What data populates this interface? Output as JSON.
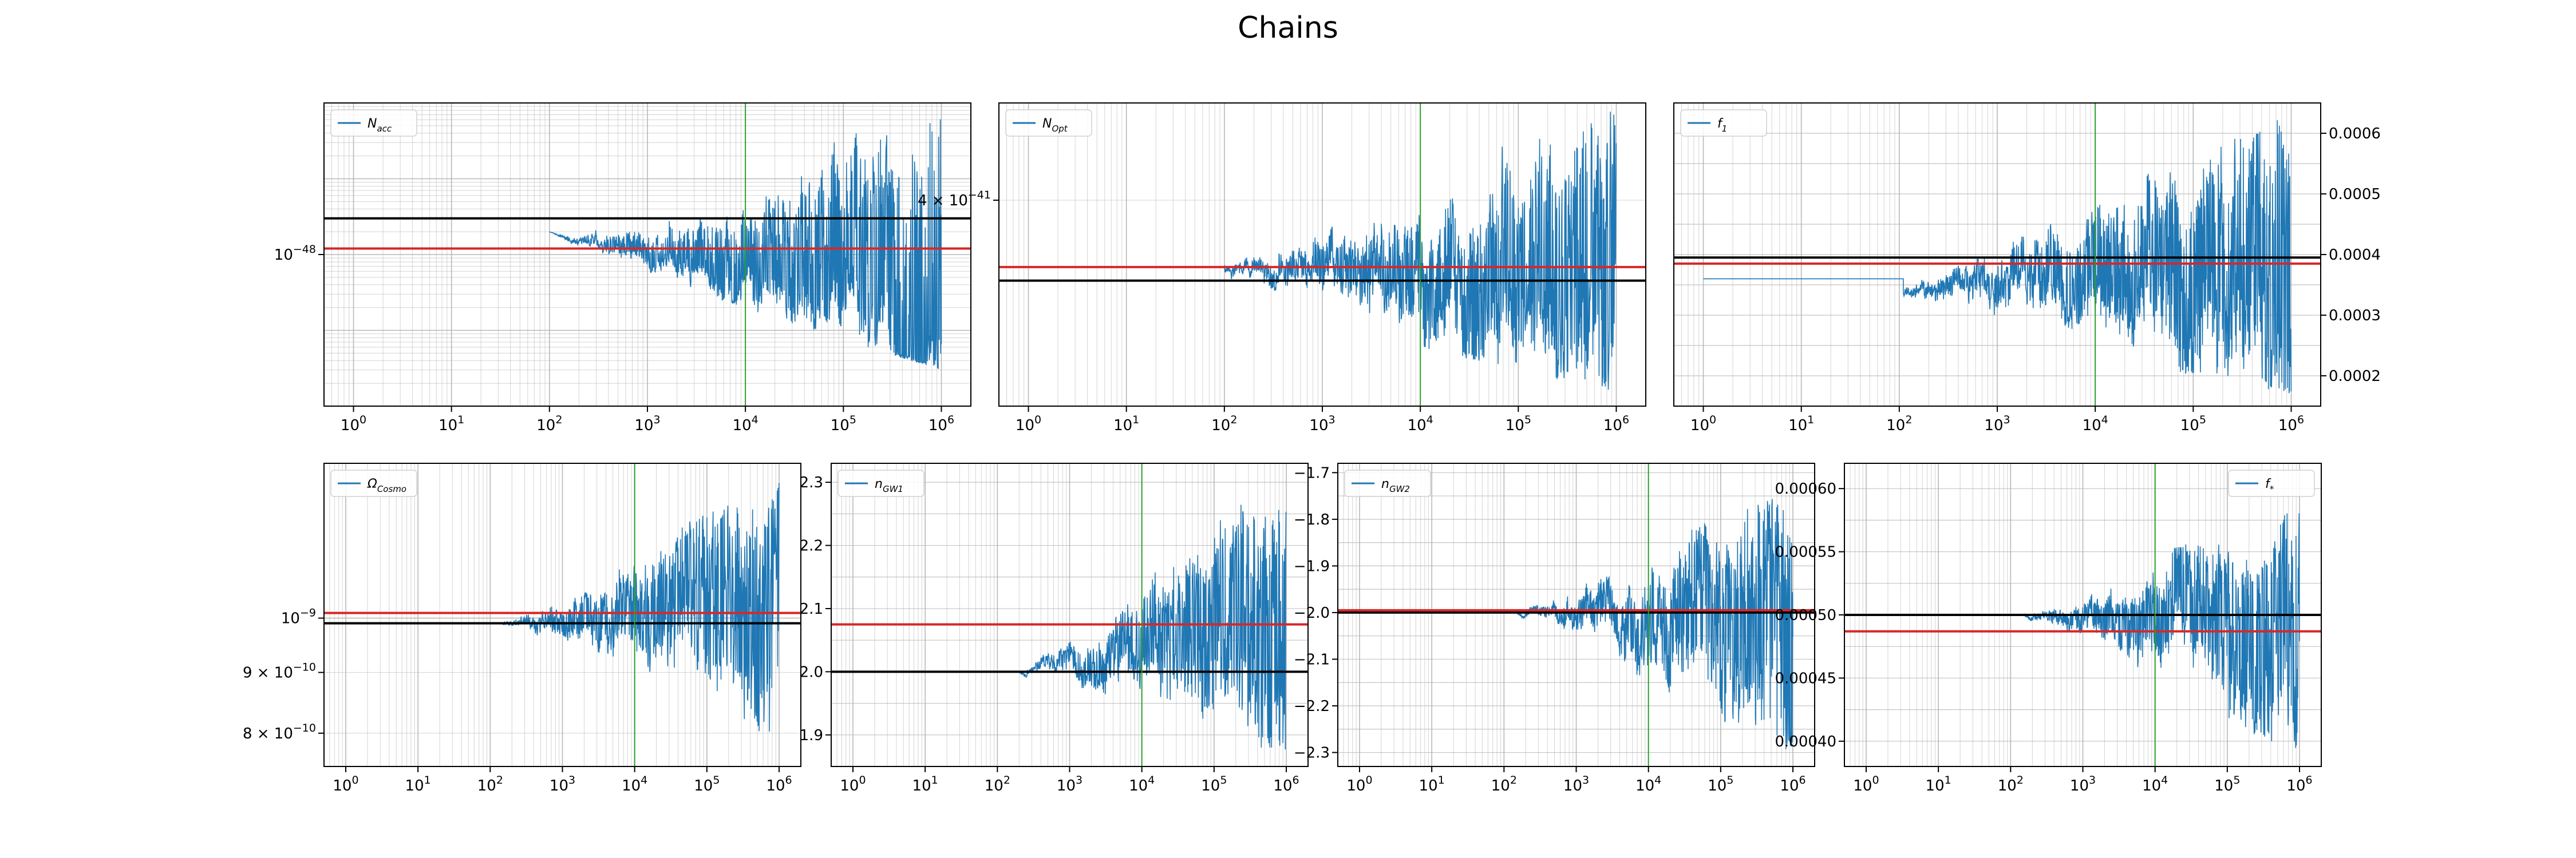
{
  "figure": {
    "title": "Chains"
  },
  "colors": {
    "chain": "#1f77b4",
    "red_line": "#d62728",
    "black_line": "#000000",
    "green_line": "#2ca02c",
    "grid": "#b0b0b0"
  },
  "chart_data": [
    {
      "type": "line",
      "series": [
        {
          "name": "N_{acc}",
          "legend_main": "N",
          "legend_sub": "acc"
        }
      ],
      "x_scale": "log",
      "x_range": [
        0.5,
        2000000
      ],
      "y_scale": "log",
      "y_range": [
        1e-50,
        1e-46
      ],
      "x_ticks": [
        {
          "v": 1,
          "e": "0"
        },
        {
          "v": 10,
          "e": "1"
        },
        {
          "v": 100,
          "e": "2"
        },
        {
          "v": 1000,
          "e": "3"
        },
        {
          "v": 10000,
          "e": "4"
        },
        {
          "v": 100000,
          "e": "5"
        },
        {
          "v": 1000000,
          "e": "6"
        }
      ],
      "y_ticks": [
        {
          "v": 1e-48,
          "t": "10",
          "e": "−48"
        }
      ],
      "y_tick_side": "left",
      "legend_position": "upper left",
      "hlines": [
        {
          "y": 3e-48,
          "color": "black"
        },
        {
          "y": 1.2e-48,
          "color": "red"
        }
      ],
      "vline": 10000,
      "chain": {
        "start": 100,
        "end": 1000000,
        "c_start": 2e-48,
        "c_end": 1e-49,
        "u_start": 2e-48,
        "u_end": 8e-47,
        "l_start": 2e-48,
        "l_end": 3e-50,
        "seed": 11
      }
    },
    {
      "type": "line",
      "series": [
        {
          "name": "N_{Opt}",
          "legend_main": "N",
          "legend_sub": "Opt"
        }
      ],
      "x_scale": "log",
      "x_range": [
        0.5,
        2000000
      ],
      "y_scale": "log",
      "y_range": [
        3.7e-41,
        4.15e-41
      ],
      "x_ticks": [
        {
          "v": 1,
          "e": "0"
        },
        {
          "v": 10,
          "e": "1"
        },
        {
          "v": 100,
          "e": "2"
        },
        {
          "v": 1000,
          "e": "3"
        },
        {
          "v": 10000,
          "e": "4"
        },
        {
          "v": 100000,
          "e": "5"
        },
        {
          "v": 1000000,
          "e": "6"
        }
      ],
      "y_ticks": [
        {
          "v": 4e-41,
          "t": "4 × 10",
          "e": "−41"
        }
      ],
      "y_tick_side": "left",
      "legend_position": "upper left",
      "hlines": [
        {
          "y": 3.9e-41,
          "color": "red"
        },
        {
          "y": 3.88e-41,
          "color": "black"
        }
      ],
      "vline": 10000,
      "chain": {
        "start": 100,
        "end": 1000000,
        "c_start": 3.9e-41,
        "c_end": 3.87e-41,
        "u_start": 3.92e-41,
        "u_end": 4.14e-41,
        "l_start": 3.86e-41,
        "l_end": 3.72e-41,
        "seed": 23
      }
    },
    {
      "type": "line",
      "series": [
        {
          "name": "f_1",
          "legend_main": "f",
          "legend_sub": "1"
        }
      ],
      "x_scale": "log",
      "x_range": [
        0.5,
        2000000
      ],
      "y_scale": "linear",
      "y_range": [
        0.00015,
        0.00065
      ],
      "x_ticks": [
        {
          "v": 1,
          "e": "0"
        },
        {
          "v": 10,
          "e": "1"
        },
        {
          "v": 100,
          "e": "2"
        },
        {
          "v": 1000,
          "e": "3"
        },
        {
          "v": 10000,
          "e": "4"
        },
        {
          "v": 100000,
          "e": "5"
        },
        {
          "v": 1000000,
          "e": "6"
        }
      ],
      "y_ticks": [
        {
          "v": 0.0002,
          "t": "0.0002"
        },
        {
          "v": 0.0003,
          "t": "0.0003"
        },
        {
          "v": 0.0004,
          "t": "0.0004"
        },
        {
          "v": 0.0005,
          "t": "0.0005"
        },
        {
          "v": 0.0006,
          "t": "0.0006"
        }
      ],
      "y_tick_side": "right",
      "legend_position": "upper left",
      "hlines": [
        {
          "y": 0.000395,
          "color": "black"
        },
        {
          "y": 0.000385,
          "color": "red"
        }
      ],
      "vline": 10000,
      "flat": {
        "x0": 1,
        "x1": 110,
        "y": 0.00036
      },
      "chain": {
        "start": 110,
        "end": 1000000,
        "c_start": 0.00034,
        "c_end": 0.00038,
        "u_start": 0.00038,
        "u_end": 0.00063,
        "l_start": 0.00031,
        "l_end": 0.00017,
        "clip_max": 0.000625,
        "seed": 37
      }
    },
    {
      "type": "line",
      "series": [
        {
          "name": "Ω_{Cosmo}",
          "legend_main": "Ω",
          "legend_sub": "Cosmo"
        }
      ],
      "x_scale": "log",
      "x_range": [
        0.5,
        2000000
      ],
      "y_scale": "log",
      "y_range": [
        7.5e-10,
        1.35e-09
      ],
      "x_ticks": [
        {
          "v": 1,
          "e": "0"
        },
        {
          "v": 10,
          "e": "1"
        },
        {
          "v": 100,
          "e": "2"
        },
        {
          "v": 1000,
          "e": "3"
        },
        {
          "v": 10000,
          "e": "4"
        },
        {
          "v": 100000,
          "e": "5"
        },
        {
          "v": 1000000,
          "e": "6"
        }
      ],
      "y_ticks": [
        {
          "v": 1e-09,
          "t": "10",
          "e": "−9"
        },
        {
          "v": 9e-10,
          "t": "9 × 10",
          "e": "−10"
        },
        {
          "v": 8e-10,
          "t": "8 × 10",
          "e": "−10"
        }
      ],
      "y_tick_side": "left",
      "legend_position": "upper left",
      "hlines": [
        {
          "y": 1.01e-09,
          "color": "red"
        },
        {
          "y": 9.9e-10,
          "color": "black"
        }
      ],
      "vline": 10000,
      "chain": {
        "start": 150,
        "end": 1000000,
        "c_start": 9.9e-10,
        "c_end": 1.01e-09,
        "u_start": 1e-09,
        "u_end": 1.3e-09,
        "l_start": 9.8e-10,
        "l_end": 7.9e-10,
        "seed": 41
      }
    },
    {
      "type": "line",
      "series": [
        {
          "name": "n_{GW1}",
          "legend_main": "n",
          "legend_sub": "GW1"
        }
      ],
      "x_scale": "log",
      "x_range": [
        0.5,
        2000000
      ],
      "y_scale": "linear",
      "y_range": [
        1.85,
        2.33
      ],
      "x_ticks": [
        {
          "v": 1,
          "e": "0"
        },
        {
          "v": 10,
          "e": "1"
        },
        {
          "v": 100,
          "e": "2"
        },
        {
          "v": 1000,
          "e": "3"
        },
        {
          "v": 10000,
          "e": "4"
        },
        {
          "v": 100000,
          "e": "5"
        },
        {
          "v": 1000000,
          "e": "6"
        }
      ],
      "y_ticks": [
        {
          "v": 1.9,
          "t": "1.9"
        },
        {
          "v": 2.0,
          "t": "2.0"
        },
        {
          "v": 2.1,
          "t": "2.1"
        },
        {
          "v": 2.2,
          "t": "2.2"
        },
        {
          "v": 2.3,
          "t": "2.3"
        }
      ],
      "y_tick_side": "left",
      "legend_position": "upper left",
      "hlines": [
        {
          "y": 2.075,
          "color": "red"
        },
        {
          "y": 2.0,
          "color": "black"
        }
      ],
      "vline": 10000,
      "chain": {
        "start": 200,
        "end": 1000000,
        "c_start": 2.0,
        "c_end": 2.07,
        "u_start": 2.01,
        "u_end": 2.31,
        "l_start": 1.99,
        "l_end": 1.87,
        "seed": 53
      }
    },
    {
      "type": "line",
      "series": [
        {
          "name": "n_{GW2}",
          "legend_main": "n",
          "legend_sub": "GW2"
        }
      ],
      "x_scale": "log",
      "x_range": [
        0.5,
        2000000
      ],
      "y_scale": "linear",
      "y_range": [
        -2.33,
        -1.68
      ],
      "x_ticks": [
        {
          "v": 1,
          "e": "0"
        },
        {
          "v": 10,
          "e": "1"
        },
        {
          "v": 100,
          "e": "2"
        },
        {
          "v": 1000,
          "e": "3"
        },
        {
          "v": 10000,
          "e": "4"
        },
        {
          "v": 100000,
          "e": "5"
        },
        {
          "v": 1000000,
          "e": "6"
        }
      ],
      "y_ticks": [
        {
          "v": -1.7,
          "t": "−1.7"
        },
        {
          "v": -1.8,
          "t": "−1.8"
        },
        {
          "v": -1.9,
          "t": "−1.9"
        },
        {
          "v": -2.0,
          "t": "−2.0"
        },
        {
          "v": -2.1,
          "t": "−2.1"
        },
        {
          "v": -2.2,
          "t": "−2.2"
        },
        {
          "v": -2.3,
          "t": "−2.3"
        }
      ],
      "y_tick_side": "left",
      "legend_position": "upper left",
      "hlines": [
        {
          "y": -2.0,
          "color": "black"
        },
        {
          "y": -1.995,
          "color": "red"
        }
      ],
      "vline": 10000,
      "chain": {
        "start": 150,
        "end": 1000000,
        "c_start": -2.0,
        "c_end": -2.0,
        "u_start": -1.99,
        "u_end": -1.73,
        "l_start": -2.01,
        "l_end": -2.3,
        "seed": 67
      }
    },
    {
      "type": "line",
      "series": [
        {
          "name": "f_*",
          "legend_main": "f",
          "legend_sub": "*"
        }
      ],
      "x_scale": "log",
      "x_range": [
        0.5,
        2000000
      ],
      "y_scale": "linear",
      "y_range": [
        0.00038,
        0.00062
      ],
      "x_ticks": [
        {
          "v": 1,
          "e": "0"
        },
        {
          "v": 10,
          "e": "1"
        },
        {
          "v": 100,
          "e": "2"
        },
        {
          "v": 1000,
          "e": "3"
        },
        {
          "v": 10000,
          "e": "4"
        },
        {
          "v": 100000,
          "e": "5"
        },
        {
          "v": 1000000,
          "e": "6"
        }
      ],
      "y_ticks": [
        {
          "v": 0.0004,
          "t": "0.00040"
        },
        {
          "v": 0.00045,
          "t": "0.00045"
        },
        {
          "v": 0.0005,
          "t": "0.00050"
        },
        {
          "v": 0.00055,
          "t": "0.00055"
        },
        {
          "v": 0.0006,
          "t": "0.00060"
        }
      ],
      "y_tick_side": "left",
      "legend_position": "upper right",
      "hlines": [
        {
          "y": 0.0005,
          "color": "black"
        },
        {
          "y": 0.000487,
          "color": "red"
        }
      ],
      "vline": 10000,
      "chain": {
        "start": 150,
        "end": 1000000,
        "c_start": 0.0005,
        "c_end": 0.00049,
        "u_start": 0.000505,
        "u_end": 0.000585,
        "l_start": 0.000495,
        "l_end": 0.00039,
        "seed": 79
      }
    }
  ]
}
